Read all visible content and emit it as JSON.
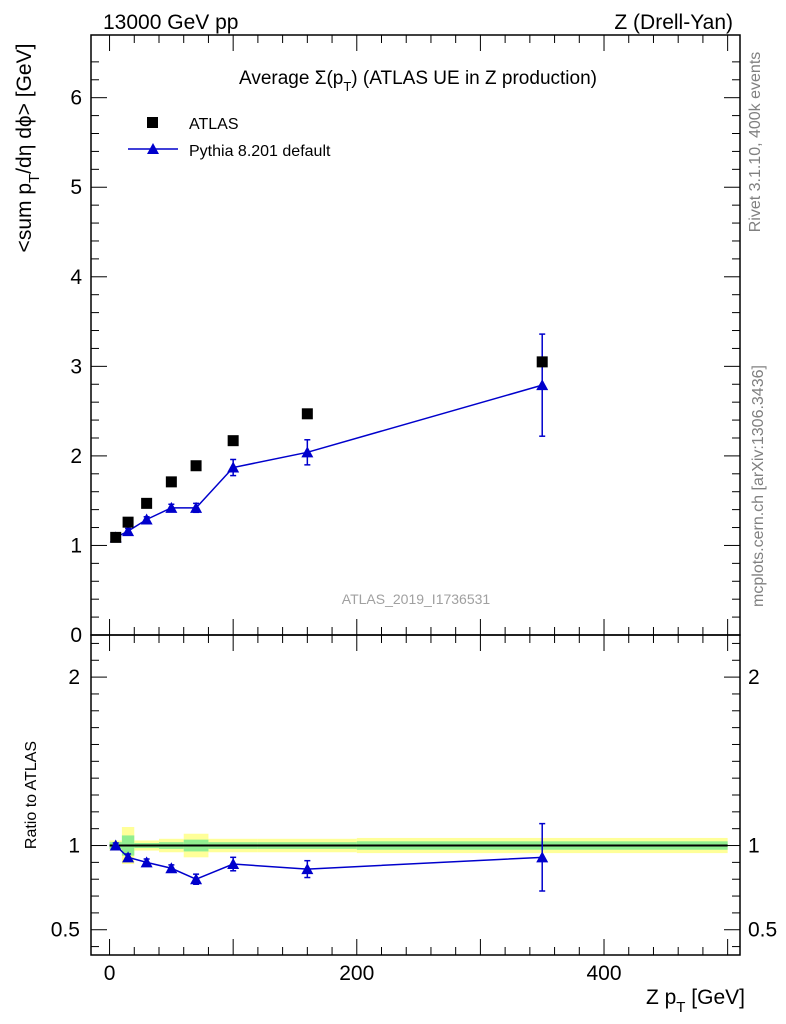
{
  "header": {
    "left": "13000 GeV pp",
    "right": "Z (Drell-Yan)"
  },
  "side_labels": {
    "rivet": "Rivet 3.1.10,  400k events",
    "mcplots": "mcplots.cern.ch [arXiv:1306.3436]"
  },
  "watermark": "ATLAS_2019_I1736531",
  "colors": {
    "mc": "#0000cc",
    "data": "#000000",
    "band_inner": "#90ee90",
    "band_outer": "#ffff99"
  },
  "chart_data": [
    {
      "type": "scatter",
      "panel": "main",
      "title": {
        "prefix": "Average ",
        "sigma": "Σ(p",
        "sub": "T",
        "suffix": ") (ATLAS UE in Z production)"
      },
      "ylabel": {
        "a": "<sum p",
        "sub": "T",
        "b": "/dη dϕ> [GeV]"
      },
      "xlim": [
        -15,
        510
      ],
      "ylim": [
        0,
        6.7
      ],
      "yticks": [
        0,
        1,
        2,
        3,
        4,
        5,
        6
      ],
      "ytick_labels": [
        "0",
        "1",
        "2",
        "3",
        "4",
        "5",
        "6"
      ],
      "legend": {
        "position": "top-left",
        "entries": [
          "ATLAS",
          "Pythia 8.201 default"
        ]
      },
      "series": [
        {
          "name": "ATLAS",
          "marker": "square",
          "x": [
            5,
            15,
            30,
            50,
            70,
            100,
            160,
            350
          ],
          "y": [
            1.09,
            1.26,
            1.47,
            1.71,
            1.89,
            2.17,
            2.47,
            3.05
          ]
        },
        {
          "name": "Pythia 8.201 default",
          "marker": "triangle",
          "x": [
            5,
            15,
            30,
            50,
            70,
            100,
            160,
            350
          ],
          "y": [
            1.09,
            1.16,
            1.29,
            1.42,
            1.42,
            1.87,
            2.04,
            2.79
          ],
          "yerr": [
            0.02,
            0.03,
            0.03,
            0.04,
            0.05,
            0.09,
            0.14,
            0.57
          ]
        }
      ]
    },
    {
      "type": "line",
      "panel": "ratio",
      "ylabel": "Ratio to ATLAS",
      "xlabel": {
        "a": "Z p",
        "sub": "T",
        "b": " [GeV]"
      },
      "xlim": [
        -15,
        510
      ],
      "ylim": [
        0.35,
        2.25
      ],
      "xticks": [
        0,
        200,
        400
      ],
      "xtick_labels": [
        "0",
        "200",
        "400"
      ],
      "yticks": [
        0.5,
        1,
        2
      ],
      "ytick_labels": [
        "0.5",
        "1",
        "2"
      ],
      "band_bins": [
        {
          "x0": 0,
          "x1": 10,
          "inner": 0.02,
          "outer": 0.03
        },
        {
          "x0": 10,
          "x1": 20,
          "inner": 0.06,
          "outer": 0.11
        },
        {
          "x0": 20,
          "x1": 40,
          "inner": 0.015,
          "outer": 0.03
        },
        {
          "x0": 40,
          "x1": 60,
          "inner": 0.02,
          "outer": 0.04
        },
        {
          "x0": 60,
          "x1": 80,
          "inner": 0.035,
          "outer": 0.07
        },
        {
          "x0": 80,
          "x1": 120,
          "inner": 0.02,
          "outer": 0.04
        },
        {
          "x0": 120,
          "x1": 200,
          "inner": 0.02,
          "outer": 0.04
        },
        {
          "x0": 200,
          "x1": 500,
          "inner": 0.025,
          "outer": 0.045
        }
      ],
      "series": [
        {
          "name": "Pythia 8.201 default",
          "marker": "triangle",
          "x": [
            5,
            15,
            30,
            50,
            70,
            100,
            160,
            350
          ],
          "y": [
            1.0,
            0.93,
            0.9,
            0.865,
            0.8,
            0.89,
            0.86,
            0.93
          ],
          "yerr": [
            0.015,
            0.02,
            0.02,
            0.02,
            0.03,
            0.04,
            0.05,
            0.2
          ]
        }
      ]
    }
  ]
}
